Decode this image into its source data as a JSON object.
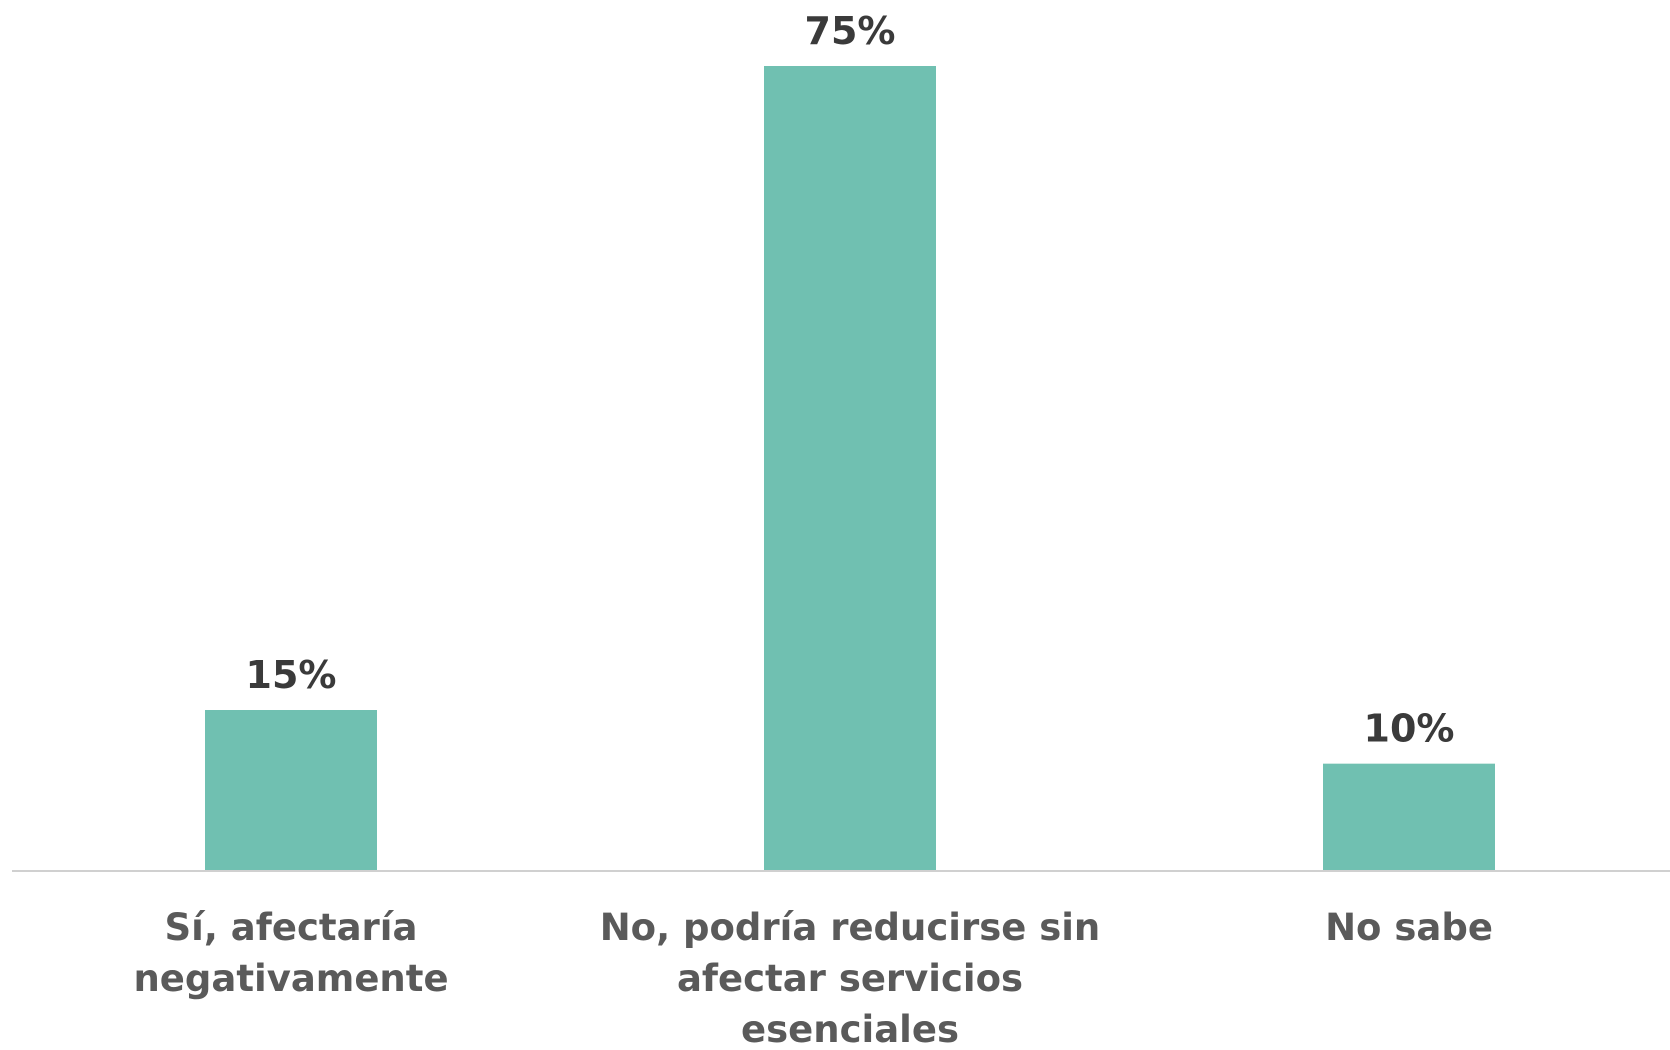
{
  "chart_data": {
    "type": "bar",
    "categories": [
      [
        "Sí, afectaría",
        "negativamente"
      ],
      [
        "No, podría reducirse sin",
        "afectar servicios",
        "esenciales"
      ],
      [
        "No sabe"
      ]
    ],
    "values": [
      15,
      75,
      10
    ],
    "value_labels": [
      "15%",
      "75%",
      "10%"
    ],
    "unit": "%",
    "title": "",
    "xlabel": "",
    "ylabel": "",
    "ylim": [
      0,
      75
    ],
    "grid": false,
    "legend": "none",
    "colors": {
      "bar": "#70c0b1",
      "axis": "#d0d0d0",
      "value_text": "#3a3a3a",
      "category_text": "#5a5a5a"
    }
  }
}
